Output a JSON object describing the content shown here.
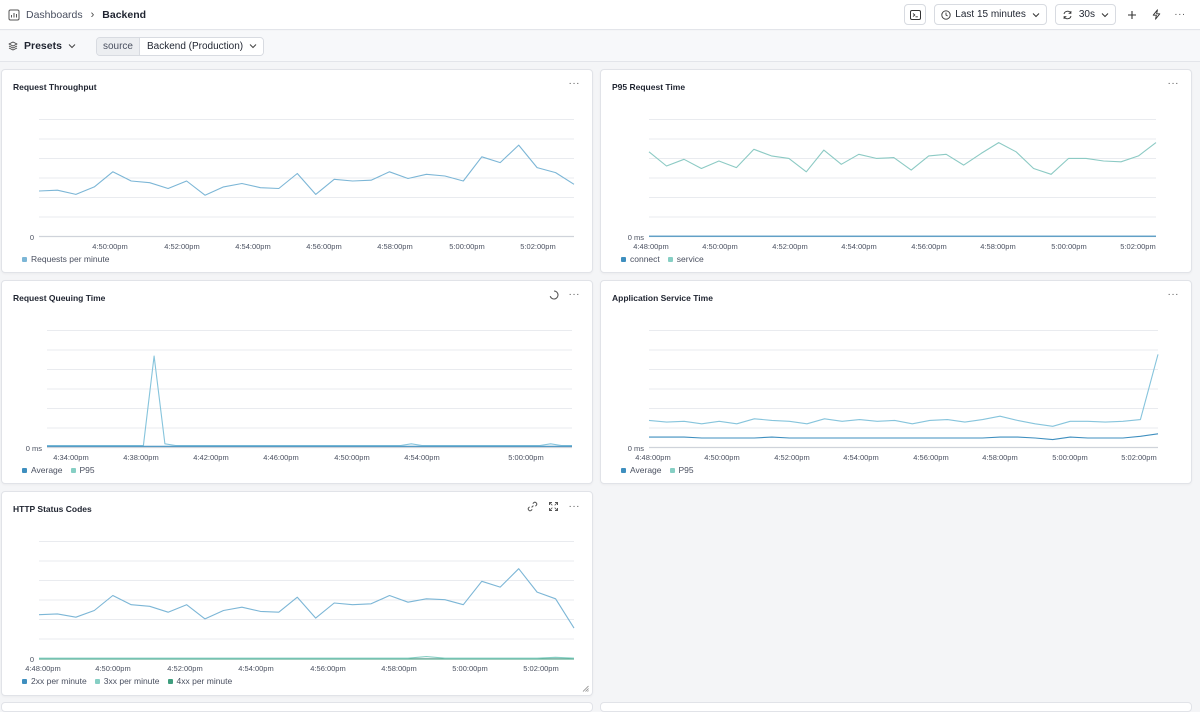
{
  "breadcrumb": {
    "root": "Dashboards",
    "current": "Backend"
  },
  "toolbar": {
    "time_range": "Last 15 minutes",
    "refresh": "30s"
  },
  "filters": {
    "presets_label": "Presets",
    "source_key": "source",
    "source_value": "Backend (Production)"
  },
  "colors": {
    "blue": "#7cb6d6",
    "teal": "#86cfc4",
    "green": "#3f9e7e",
    "grid": "#e9ebef",
    "axis": "#cfd3da"
  },
  "panels": [
    {
      "id": "throughput",
      "title": "Request Throughput",
      "y_label": "0",
      "x_ticks": [
        "4:50:00pm",
        "4:52:00pm",
        "4:54:00pm",
        "4:56:00pm",
        "4:58:00pm",
        "5:00:00pm",
        "5:02:00pm"
      ],
      "legend": [
        {
          "name": "Requests per minute",
          "color": "#7cb6d6"
        }
      ]
    },
    {
      "id": "p95",
      "title": "P95 Request Time",
      "y_label": "0 ms",
      "x_ticks": [
        "4:48:00pm",
        "4:50:00pm",
        "4:52:00pm",
        "4:54:00pm",
        "4:56:00pm",
        "4:58:00pm",
        "5:00:00pm",
        "5:02:00pm"
      ],
      "legend": [
        {
          "name": "connect",
          "color": "#3f8fbf"
        },
        {
          "name": "service",
          "color": "#86cfc4"
        }
      ]
    },
    {
      "id": "queuing",
      "title": "Request Queuing Time",
      "y_label": "0 ms",
      "x_ticks": [
        "4:34:00pm",
        "4:38:00pm",
        "4:42:00pm",
        "4:46:00pm",
        "4:50:00pm",
        "4:54:00pm",
        "5:00:00pm"
      ],
      "legend": [
        {
          "name": "Average",
          "color": "#3f8fbf"
        },
        {
          "name": "P95",
          "color": "#86cfc4"
        }
      ]
    },
    {
      "id": "service",
      "title": "Application Service Time",
      "y_label": "0 ms",
      "x_ticks": [
        "4:48:00pm",
        "4:50:00pm",
        "4:52:00pm",
        "4:54:00pm",
        "4:56:00pm",
        "4:58:00pm",
        "5:00:00pm",
        "5:02:00pm"
      ],
      "legend": [
        {
          "name": "Average",
          "color": "#3f8fbf"
        },
        {
          "name": "P95",
          "color": "#86cfc4"
        }
      ]
    },
    {
      "id": "status",
      "title": "HTTP Status Codes",
      "y_label": "0",
      "x_ticks": [
        "4:48:00pm",
        "4:50:00pm",
        "4:52:00pm",
        "4:54:00pm",
        "4:56:00pm",
        "4:58:00pm",
        "5:00:00pm",
        "5:02:00pm"
      ],
      "legend": [
        {
          "name": "2xx per minute",
          "color": "#3f8fbf"
        },
        {
          "name": "3xx per minute",
          "color": "#86cfc4"
        },
        {
          "name": "4xx per minute",
          "color": "#3f9e7e"
        }
      ]
    }
  ],
  "chart_data": [
    {
      "type": "line",
      "title": "Request Throughput",
      "series": [
        {
          "name": "Requests per minute",
          "values": [
            55,
            56,
            51,
            60,
            78,
            67,
            65,
            58,
            67,
            50,
            60,
            64,
            59,
            58,
            76,
            51,
            69,
            67,
            68,
            78,
            70,
            75,
            73,
            67,
            96,
            89,
            110,
            83,
            77,
            63
          ]
        }
      ],
      "ylim": [
        0,
        140
      ]
    },
    {
      "type": "line",
      "title": "P95 Request Time",
      "series": [
        {
          "name": "connect",
          "values": [
            1,
            1,
            1,
            1,
            1,
            1,
            1,
            1,
            1,
            1,
            1,
            1,
            1,
            1,
            1,
            1,
            1,
            1,
            1,
            1,
            1,
            1,
            1,
            1,
            1,
            1,
            1,
            1,
            1,
            1
          ]
        },
        {
          "name": "service",
          "values": [
            102,
            85,
            93,
            82,
            91,
            83,
            105,
            97,
            94,
            78,
            104,
            87,
            99,
            94,
            95,
            80,
            97,
            99,
            86,
            100,
            113,
            102,
            82,
            75,
            94,
            94,
            91,
            90,
            97,
            113
          ]
        }
      ],
      "ylim": [
        0,
        140
      ]
    },
    {
      "type": "line",
      "title": "Request Queuing Time",
      "series": [
        {
          "name": "Average",
          "values": [
            2,
            2,
            2,
            2,
            2,
            2,
            2,
            2,
            2,
            2,
            2,
            2,
            2,
            2,
            2,
            2,
            2,
            2,
            2,
            2,
            2,
            2,
            2,
            2,
            2,
            2,
            2,
            2,
            2,
            2,
            2,
            2,
            2,
            2,
            2,
            2,
            2,
            2,
            2,
            2,
            2,
            2,
            2,
            2,
            2,
            2,
            2,
            2,
            2,
            2
          ]
        },
        {
          "name": "P95",
          "values": [
            3,
            3,
            3,
            3,
            3,
            3,
            3,
            3,
            3,
            3,
            110,
            5,
            3,
            3,
            3,
            3,
            3,
            3,
            3,
            3,
            3,
            3,
            3,
            3,
            3,
            3,
            3,
            3,
            3,
            3,
            3,
            3,
            3,
            3,
            5,
            3,
            3,
            3,
            3,
            3,
            3,
            3,
            3,
            3,
            3,
            3,
            3,
            5,
            3,
            3
          ]
        }
      ],
      "ylim": [
        0,
        140
      ]
    },
    {
      "type": "line",
      "title": "Application Service Time",
      "series": [
        {
          "name": "Average",
          "values": [
            13,
            13,
            13,
            12,
            12,
            12,
            12,
            13,
            12,
            12,
            12,
            12,
            12,
            12,
            12,
            12,
            12,
            12,
            12,
            12,
            13,
            13,
            12,
            10,
            13,
            12,
            12,
            12,
            14,
            17
          ]
        },
        {
          "name": "P95",
          "values": [
            33,
            31,
            32,
            29,
            32,
            29,
            35,
            33,
            32,
            29,
            35,
            32,
            34,
            32,
            33,
            29,
            33,
            34,
            31,
            34,
            38,
            33,
            29,
            26,
            32,
            32,
            31,
            32,
            34,
            112
          ]
        }
      ],
      "ylim": [
        0,
        140
      ]
    },
    {
      "type": "line",
      "title": "HTTP Status Codes",
      "series": [
        {
          "name": "2xx per minute",
          "values": [
            53,
            54,
            50,
            58,
            76,
            65,
            63,
            56,
            65,
            48,
            58,
            62,
            57,
            56,
            74,
            49,
            67,
            65,
            66,
            76,
            68,
            72,
            71,
            65,
            93,
            86,
            108,
            80,
            72,
            37
          ]
        },
        {
          "name": "3xx per minute",
          "values": [
            1,
            1,
            1,
            1,
            1,
            1,
            1,
            1,
            1,
            1,
            1,
            1,
            1,
            1,
            1,
            1,
            1,
            1,
            1,
            1,
            1,
            3,
            1,
            1,
            1,
            1,
            1,
            1,
            2,
            1
          ]
        },
        {
          "name": "4xx per minute",
          "values": [
            0,
            0,
            0,
            0,
            0,
            0,
            0,
            0,
            0,
            0,
            0,
            0,
            0,
            0,
            0,
            0,
            0,
            0,
            0,
            0,
            0,
            0,
            0,
            0,
            0,
            0,
            0,
            0,
            0,
            0
          ]
        }
      ],
      "ylim": [
        0,
        140
      ]
    }
  ]
}
